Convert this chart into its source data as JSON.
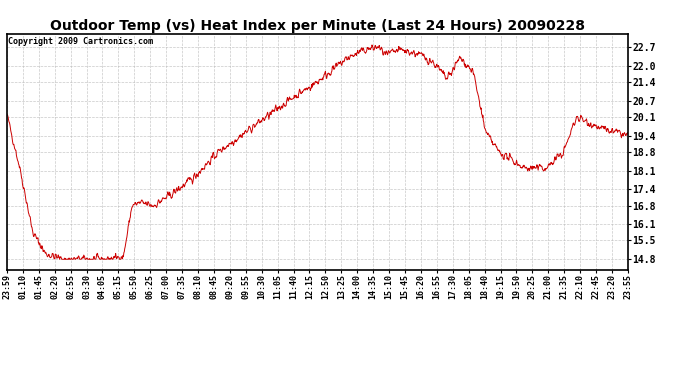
{
  "title": "Outdoor Temp (vs) Heat Index per Minute (Last 24 Hours) 20090228",
  "copyright": "Copyright 2009 Cartronics.com",
  "line_color": "#cc0000",
  "background_color": "#ffffff",
  "plot_bg_color": "#ffffff",
  "grid_color": "#bbbbbb",
  "yticks": [
    14.8,
    15.5,
    16.1,
    16.8,
    17.4,
    18.1,
    18.8,
    19.4,
    20.1,
    20.7,
    21.4,
    22.0,
    22.7
  ],
  "ylim": [
    14.4,
    23.2
  ],
  "xtick_labels": [
    "23:59",
    "01:10",
    "01:45",
    "02:20",
    "02:55",
    "03:30",
    "04:05",
    "05:15",
    "05:50",
    "06:25",
    "07:00",
    "07:35",
    "08:10",
    "08:45",
    "09:20",
    "09:55",
    "10:30",
    "11:05",
    "11:40",
    "12:15",
    "12:50",
    "13:25",
    "14:00",
    "14:35",
    "15:10",
    "15:45",
    "16:20",
    "16:55",
    "17:30",
    "18:05",
    "18:40",
    "19:15",
    "19:50",
    "20:25",
    "21:00",
    "21:35",
    "22:10",
    "22:45",
    "23:20",
    "23:55"
  ],
  "n_points": 1440,
  "seed": 42,
  "keyframes_x": [
    0,
    30,
    60,
    90,
    130,
    180,
    230,
    270,
    290,
    310,
    340,
    380,
    430,
    490,
    550,
    610,
    660,
    710,
    750,
    790,
    830,
    860,
    880,
    910,
    940,
    960,
    990,
    1020,
    1050,
    1080,
    1110,
    1140,
    1200,
    1250,
    1290,
    1320,
    1360,
    1390,
    1420,
    1439
  ],
  "keyframes_y": [
    20.2,
    18.2,
    15.8,
    15.0,
    14.8,
    14.8,
    14.8,
    14.9,
    16.8,
    16.9,
    16.8,
    17.2,
    17.8,
    18.8,
    19.5,
    20.2,
    20.8,
    21.3,
    21.8,
    22.3,
    22.6,
    22.7,
    22.4,
    22.6,
    22.5,
    22.4,
    22.1,
    21.5,
    22.3,
    21.8,
    19.5,
    18.8,
    18.2,
    18.2,
    18.8,
    20.1,
    19.8,
    19.6,
    19.5,
    19.4
  ]
}
